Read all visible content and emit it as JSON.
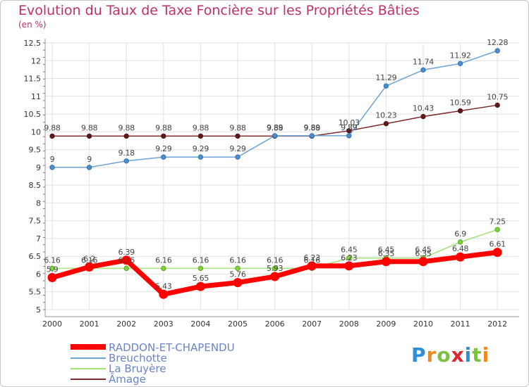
{
  "title": "Evolution du Taux de Taxe Foncière sur les Propriétés Bâties",
  "unit_label": "(en %)",
  "logo": {
    "text": "Proxiti",
    "letters": [
      "P",
      "r",
      "o",
      "x",
      "i",
      "t",
      "i"
    ],
    "colors": [
      "#2d8fd6",
      "#ef8a20",
      "#7cc242",
      "#e0252e",
      "#2d8fd6",
      "#7cc242",
      "#ef8a20"
    ]
  },
  "chart_data": {
    "type": "line",
    "title": "Evolution du Taux de Taxe Foncière sur les Propriétés Bâties",
    "ylabel": "(en %)",
    "xlabel": "",
    "ylim": [
      5,
      12.5
    ],
    "yticks": [
      "5",
      "5.5",
      "6",
      "6.5",
      "7",
      "7.5",
      "8",
      "8.5",
      "9",
      "9.5",
      "10",
      "10.5",
      "11",
      "11.5",
      "12",
      "12.5"
    ],
    "categories": [
      "2000",
      "2001",
      "2002",
      "2003",
      "2004",
      "2005",
      "2006",
      "2007",
      "2008",
      "2009",
      "2010",
      "2011",
      "2012"
    ],
    "series": [
      {
        "name": "Âmage",
        "color": "#7a2a2a",
        "values": [
          9.88,
          9.88,
          9.88,
          9.88,
          9.88,
          9.88,
          9.88,
          9.88,
          10.03,
          10.23,
          10.43,
          10.59,
          10.75
        ],
        "labels": [
          "9.88",
          "9.88",
          "9.88",
          "9.88",
          "9.88",
          "9.88",
          "9.88",
          "9.88",
          "10.03",
          "10.23",
          "10.43",
          "10.59",
          "10.75"
        ]
      },
      {
        "name": "Breuchotte",
        "color": "#6fa3d6",
        "values": [
          9,
          9,
          9.18,
          9.29,
          9.29,
          9.29,
          9.89,
          9.89,
          9.89,
          11.29,
          11.74,
          11.92,
          12.28
        ],
        "labels": [
          "9",
          "9",
          "9.18",
          "9.29",
          "9.29",
          "9.29",
          "9.89",
          "9.89",
          "9.89",
          "11.29",
          "11.74",
          "11.92",
          "12.28"
        ]
      },
      {
        "name": "La Bruyère",
        "color": "#a6e07a",
        "values": [
          6.16,
          6.16,
          6.16,
          6.16,
          6.16,
          6.16,
          6.16,
          6.16,
          6.45,
          6.45,
          6.45,
          6.9,
          7.25
        ],
        "labels": [
          "6.16",
          "6.16",
          "6.16",
          "6.16",
          "6.16",
          "6.16",
          "6.16",
          "6.16",
          "6.45",
          "6.45",
          "6.45",
          "6.9",
          "7.25"
        ]
      },
      {
        "name": "RADDON-ET-CHAPENDU",
        "color": "#ff0000",
        "values": [
          5.9,
          6.2,
          6.39,
          5.43,
          5.65,
          5.76,
          5.93,
          6.23,
          6.23,
          6.35,
          6.35,
          6.48,
          6.61
        ],
        "labels": [
          "5.9",
          "6.2",
          "6.39",
          "5.43",
          "5.65",
          "5.76",
          "5.93",
          "6.23",
          "6.23",
          "6.35",
          "6.35",
          "6.48",
          "6.61"
        ]
      }
    ],
    "legend": [
      "RADDON-ET-CHAPENDU",
      "Breuchotte",
      "La Bruyère",
      "Âmage"
    ]
  }
}
